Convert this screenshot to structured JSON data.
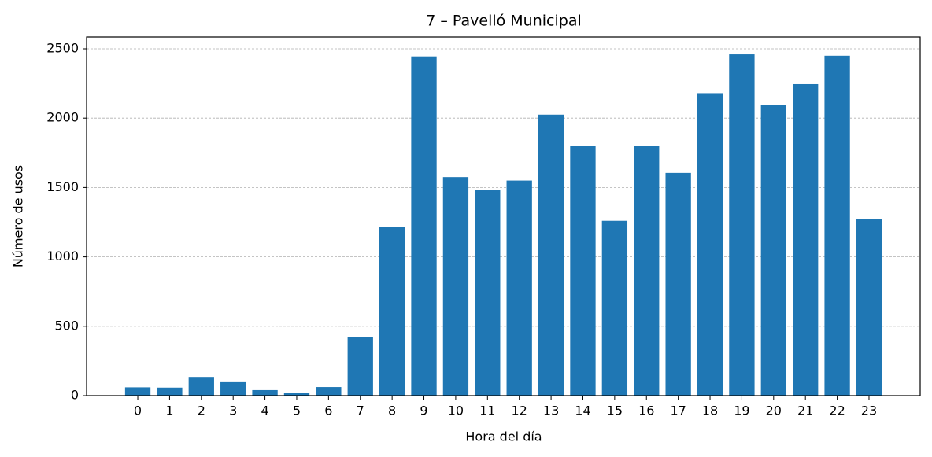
{
  "chart_data": {
    "type": "bar",
    "title": "7 – Pavelló Municipal",
    "x_label": "Hora del día",
    "y_label": "Número de usos",
    "categories": [
      "0",
      "1",
      "2",
      "3",
      "4",
      "5",
      "6",
      "7",
      "8",
      "9",
      "10",
      "11",
      "12",
      "13",
      "14",
      "15",
      "16",
      "17",
      "18",
      "19",
      "20",
      "21",
      "22",
      "23"
    ],
    "values": [
      60,
      58,
      135,
      97,
      40,
      18,
      62,
      425,
      1215,
      2445,
      1575,
      1485,
      1550,
      2025,
      1800,
      1260,
      1800,
      1605,
      2180,
      2460,
      2095,
      2245,
      2450,
      1275
    ],
    "color": "#1f77b4",
    "ylim": [
      0,
      2585
    ],
    "yticks": [
      0,
      500,
      1000,
      1500,
      2000,
      2500
    ],
    "grid": true
  }
}
